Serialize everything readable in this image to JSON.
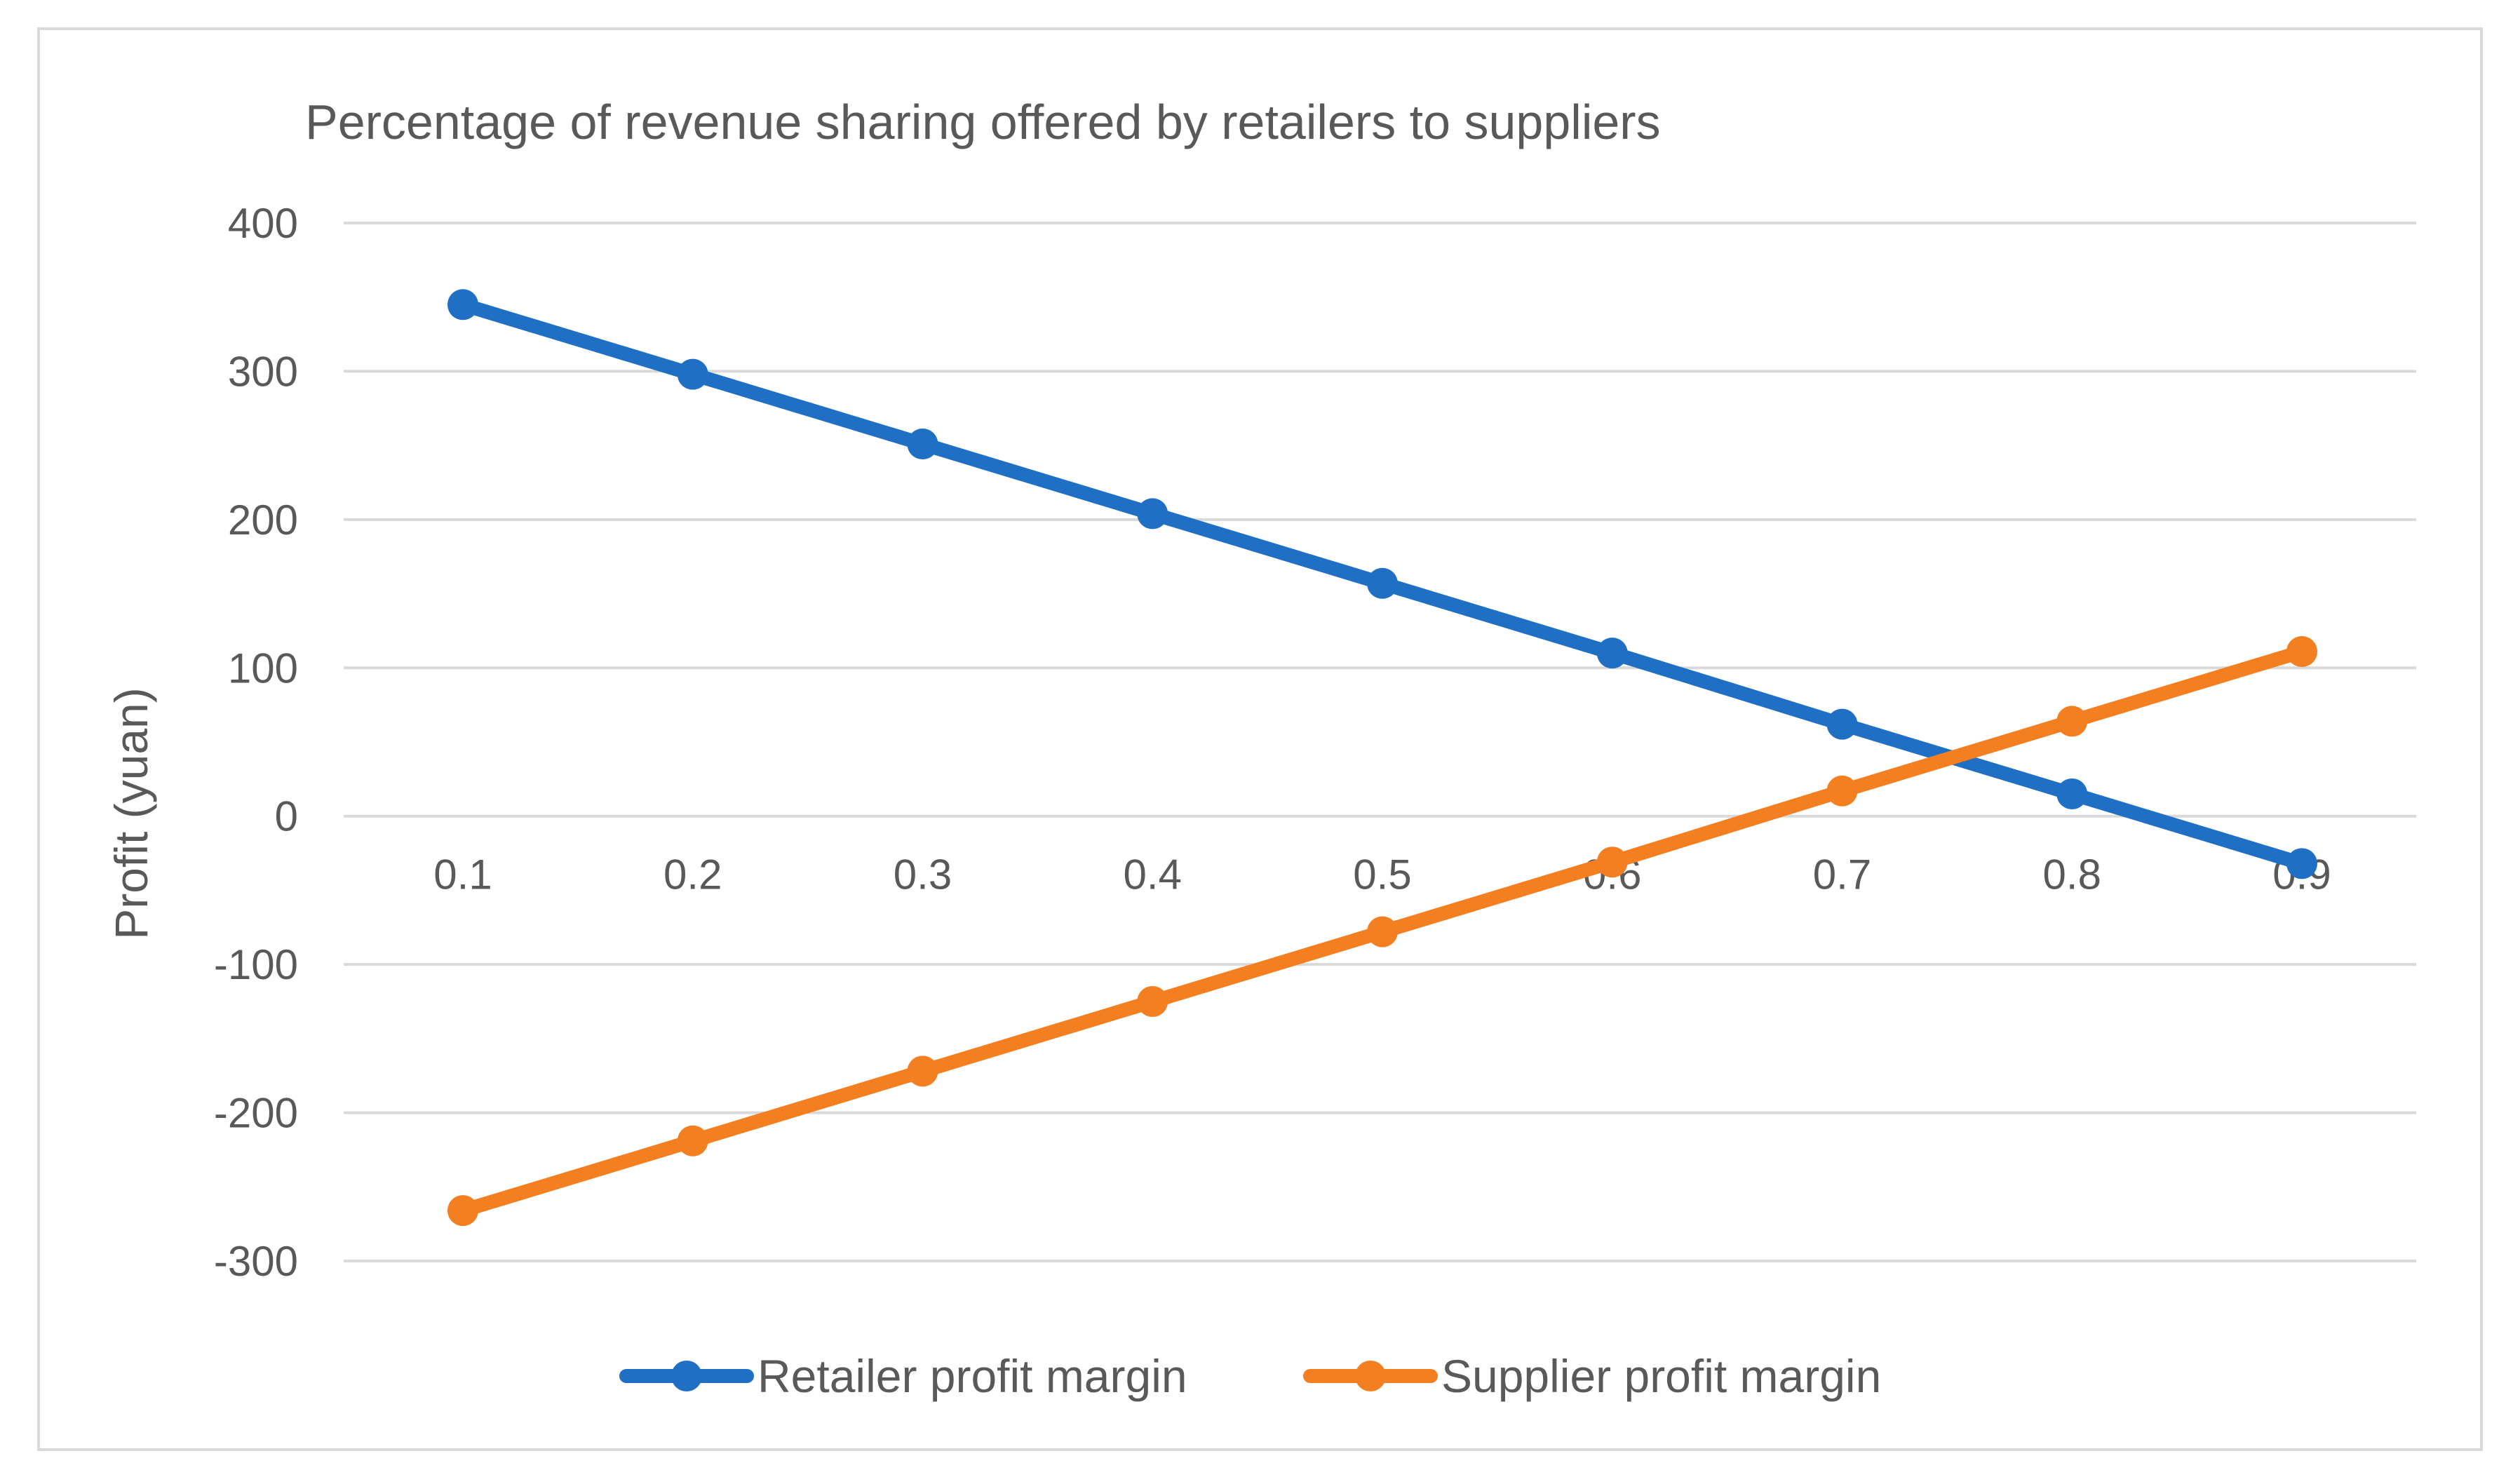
{
  "chart_data": {
    "type": "line",
    "title": "Percentage of revenue sharing offered by retailers to suppliers",
    "xlabel": "",
    "ylabel": "Profit (yuan)",
    "categories": [
      "0.1",
      "0.2",
      "0.3",
      "0.4",
      "0.5",
      "0.6",
      "0.7",
      "0.8",
      "0.9"
    ],
    "series": [
      {
        "name": "Retailer profit margin",
        "color": "#1f6fc5",
        "values": [
          345,
          298,
          251,
          204,
          157,
          110,
          62,
          15,
          -32
        ]
      },
      {
        "name": "Supplier profit margin",
        "color": "#f47f20",
        "values": [
          -266,
          -219,
          -172,
          -125,
          -78,
          -31,
          17,
          64,
          111
        ]
      }
    ],
    "ylim": [
      -300,
      400
    ],
    "yticks": [
      "400",
      "300",
      "200",
      "100",
      "0",
      "-100",
      "-200",
      "-300"
    ],
    "grid": true,
    "legend_position": "bottom"
  }
}
